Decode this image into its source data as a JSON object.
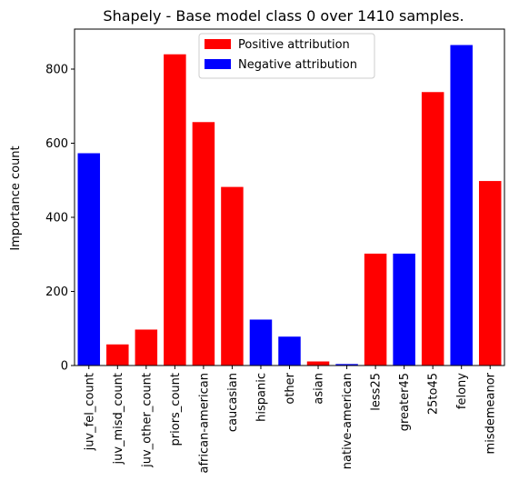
{
  "chart_data": {
    "type": "bar",
    "title": "Shapely - Base model class 0 over 1410 samples.",
    "xlabel": "",
    "ylabel": "Importance count",
    "ylim": [
      0,
      908
    ],
    "yticks": [
      0,
      200,
      400,
      600,
      800
    ],
    "grid": false,
    "legend_position": "top-center",
    "categories": [
      "juv_fel_count",
      "juv_misd_count",
      "juv_other_count",
      "priors_count",
      "african-american",
      "caucasian",
      "hispanic",
      "other",
      "asian",
      "native-american",
      "less25",
      "greater45",
      "25to45",
      "felony",
      "misdemeanor"
    ],
    "values": [
      573,
      57,
      97,
      840,
      657,
      482,
      124,
      78,
      11,
      4,
      302,
      302,
      738,
      865,
      498
    ],
    "attribution": [
      "negative",
      "positive",
      "positive",
      "positive",
      "positive",
      "positive",
      "negative",
      "negative",
      "positive",
      "negative",
      "positive",
      "negative",
      "positive",
      "negative",
      "positive"
    ],
    "legend": [
      {
        "label": "Positive attribution",
        "key": "positive",
        "color": "#ff0000"
      },
      {
        "label": "Negative attribution",
        "key": "negative",
        "color": "#0000ff"
      }
    ],
    "colors": {
      "positive": "#ff0000",
      "negative": "#0000ff"
    }
  }
}
